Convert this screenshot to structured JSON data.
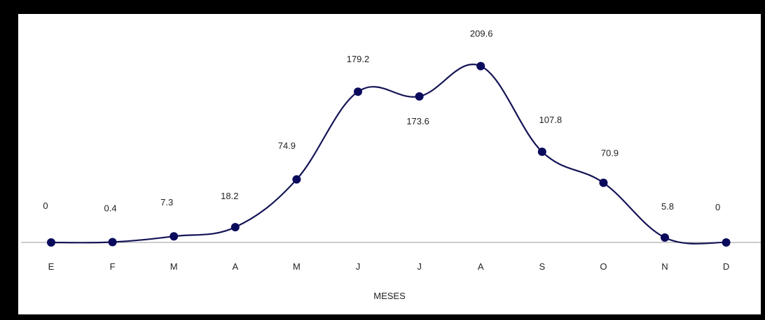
{
  "chart_data": {
    "type": "line",
    "categories": [
      "E",
      "F",
      "M",
      "A",
      "M",
      "J",
      "J",
      "A",
      "S",
      "O",
      "N",
      "D"
    ],
    "values": [
      0,
      0.4,
      7.3,
      18.2,
      74.9,
      179.2,
      173.6,
      209.6,
      107.8,
      70.9,
      5.8,
      0
    ],
    "data_labels": [
      "0",
      "0.4",
      "7.3",
      "18.2",
      "74.9",
      "179.2",
      "173.6",
      "209.6",
      "107.8",
      "70.9",
      "5.8",
      "0"
    ],
    "xlabel": "MESES",
    "ylabel": "",
    "ylim": [
      0,
      240
    ],
    "smooth": true,
    "markers": true,
    "grid": false,
    "legend": "none"
  },
  "colors": {
    "line": "#141456",
    "marker": "#0a0a5c",
    "axis": "#9a9a9a",
    "frame": "#000000"
  }
}
